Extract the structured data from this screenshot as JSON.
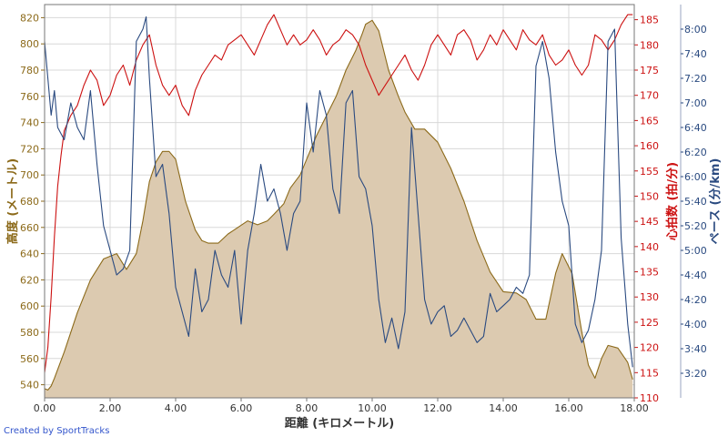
{
  "chart_data": {
    "type": "area",
    "xlabel": "距離 (キロメートル)",
    "credit": "Created by SportTracks",
    "grid": true,
    "x_axis": {
      "min": 0,
      "max": 18,
      "ticks": [
        0,
        2,
        4,
        6,
        8,
        10,
        12,
        14,
        16,
        18
      ],
      "tick_labels": [
        "0.00",
        "2.00",
        "4.00",
        "6.00",
        "8.00",
        "10.00",
        "12.00",
        "14.00",
        "16.00",
        "18.00"
      ]
    },
    "axes": {
      "elevation": {
        "label": "高度 (メートル)",
        "min": 530,
        "max": 830,
        "ticks": [
          540,
          560,
          580,
          600,
          620,
          640,
          660,
          680,
          700,
          720,
          740,
          760,
          780,
          800,
          820
        ],
        "tick_labels": [
          "540",
          "560",
          "580",
          "600",
          "620",
          "640",
          "660",
          "680",
          "700",
          "720",
          "740",
          "760",
          "780",
          "800",
          "820"
        ],
        "color": "#8c6a1a"
      },
      "heart_rate": {
        "label": "心拍数 (拍/分)",
        "min": 110,
        "max": 188,
        "ticks": [
          110,
          115,
          120,
          125,
          130,
          135,
          140,
          145,
          150,
          155,
          160,
          165,
          170,
          175,
          180,
          185
        ],
        "tick_labels": [
          "110",
          "115",
          "120",
          "125",
          "130",
          "135",
          "140",
          "145",
          "150",
          "155",
          "160",
          "165",
          "170",
          "175",
          "180",
          "185"
        ],
        "color": "#cc1111"
      },
      "pace": {
        "label": "ペース (分/km)",
        "min": 180,
        "max": 500,
        "ticks": [
          200,
          220,
          240,
          260,
          280,
          300,
          320,
          340,
          360,
          380,
          400,
          420,
          440,
          460,
          480
        ],
        "tick_labels": [
          "3:20",
          "3:40",
          "4:00",
          "4:20",
          "4:40",
          "5:00",
          "5:20",
          "5:40",
          "6:00",
          "6:20",
          "6:40",
          "7:00",
          "7:20",
          "7:40",
          "8:00"
        ],
        "color": "#2a4a80"
      }
    },
    "series": [
      {
        "axis": "elevation",
        "color": "#8c6a1a",
        "fill": "#dccab0",
        "x": [
          0,
          0.1,
          0.2,
          0.3,
          0.6,
          1.0,
          1.4,
          1.8,
          2.2,
          2.5,
          2.8,
          3.0,
          3.2,
          3.4,
          3.6,
          3.8,
          4.0,
          4.3,
          4.6,
          4.8,
          5.0,
          5.3,
          5.6,
          5.9,
          6.2,
          6.5,
          6.8,
          7.0,
          7.3,
          7.5,
          7.8,
          8.0,
          8.3,
          8.6,
          8.9,
          9.2,
          9.5,
          9.7,
          9.8,
          10.0,
          10.2,
          10.5,
          10.8,
          11.0,
          11.3,
          11.6,
          12.0,
          12.4,
          12.8,
          13.2,
          13.6,
          14.0,
          14.4,
          14.7,
          15.0,
          15.3,
          15.6,
          15.8,
          16.1,
          16.4,
          16.6,
          16.8,
          17.0,
          17.2,
          17.5,
          17.8,
          17.95
        ],
        "y": [
          537,
          536,
          539,
          545,
          565,
          595,
          620,
          636,
          640,
          628,
          640,
          665,
          695,
          710,
          718,
          718,
          712,
          680,
          658,
          650,
          648,
          648,
          655,
          660,
          665,
          662,
          665,
          670,
          678,
          690,
          700,
          712,
          730,
          745,
          760,
          780,
          795,
          808,
          815,
          818,
          810,
          780,
          760,
          748,
          735,
          735,
          725,
          705,
          680,
          650,
          626,
          611,
          610,
          605,
          590,
          590,
          625,
          640,
          625,
          580,
          555,
          545,
          560,
          570,
          568,
          557,
          544
        ]
      },
      {
        "axis": "heart_rate",
        "color": "#cc1111",
        "x": [
          0,
          0.1,
          0.2,
          0.3,
          0.4,
          0.5,
          0.6,
          0.8,
          1.0,
          1.2,
          1.4,
          1.6,
          1.8,
          2.0,
          2.2,
          2.4,
          2.6,
          2.8,
          3.0,
          3.2,
          3.4,
          3.6,
          3.8,
          4.0,
          4.2,
          4.4,
          4.6,
          4.8,
          5.0,
          5.2,
          5.4,
          5.6,
          5.8,
          6.0,
          6.2,
          6.4,
          6.6,
          6.8,
          7.0,
          7.2,
          7.4,
          7.6,
          7.8,
          8.0,
          8.2,
          8.4,
          8.6,
          8.8,
          9.0,
          9.2,
          9.4,
          9.6,
          9.8,
          10.0,
          10.2,
          10.4,
          10.6,
          10.8,
          11.0,
          11.2,
          11.4,
          11.6,
          11.8,
          12.0,
          12.2,
          12.4,
          12.6,
          12.8,
          13.0,
          13.2,
          13.4,
          13.6,
          13.8,
          14.0,
          14.2,
          14.4,
          14.6,
          14.8,
          15.0,
          15.2,
          15.4,
          15.6,
          15.8,
          16.0,
          16.2,
          16.4,
          16.6,
          16.8,
          17.0,
          17.2,
          17.4,
          17.6,
          17.8,
          17.95
        ],
        "y": [
          115,
          120,
          130,
          142,
          152,
          158,
          163,
          166,
          168,
          172,
          175,
          173,
          168,
          170,
          174,
          176,
          172,
          177,
          180,
          182,
          176,
          172,
          170,
          172,
          168,
          166,
          171,
          174,
          176,
          178,
          177,
          180,
          181,
          182,
          180,
          178,
          181,
          184,
          186,
          183,
          180,
          182,
          180,
          181,
          183,
          181,
          178,
          180,
          181,
          183,
          182,
          180,
          176,
          173,
          170,
          172,
          174,
          176,
          178,
          175,
          173,
          176,
          180,
          182,
          180,
          178,
          182,
          183,
          181,
          177,
          179,
          182,
          180,
          183,
          181,
          179,
          183,
          181,
          180,
          182,
          178,
          176,
          177,
          179,
          176,
          174,
          176,
          182,
          181,
          179,
          181,
          184,
          186,
          186
        ]
      },
      {
        "axis": "pace",
        "color": "#2a4a80",
        "x": [
          0,
          0.1,
          0.2,
          0.3,
          0.4,
          0.6,
          0.8,
          1.0,
          1.2,
          1.4,
          1.6,
          1.8,
          2.0,
          2.2,
          2.4,
          2.6,
          2.8,
          3.0,
          3.1,
          3.2,
          3.4,
          3.6,
          3.8,
          4.0,
          4.2,
          4.4,
          4.6,
          4.8,
          5.0,
          5.2,
          5.4,
          5.6,
          5.8,
          6.0,
          6.2,
          6.4,
          6.6,
          6.8,
          7.0,
          7.2,
          7.4,
          7.6,
          7.8,
          8.0,
          8.2,
          8.4,
          8.6,
          8.8,
          9.0,
          9.2,
          9.4,
          9.6,
          9.8,
          10.0,
          10.2,
          10.4,
          10.6,
          10.8,
          11.0,
          11.2,
          11.4,
          11.6,
          11.8,
          12.0,
          12.2,
          12.4,
          12.6,
          12.8,
          13.0,
          13.2,
          13.4,
          13.6,
          13.8,
          14.0,
          14.2,
          14.4,
          14.6,
          14.8,
          15.0,
          15.2,
          15.4,
          15.6,
          15.8,
          16.0,
          16.2,
          16.4,
          16.6,
          16.8,
          17.0,
          17.2,
          17.4,
          17.6,
          17.8,
          17.95
        ],
        "y": [
          470,
          440,
          410,
          430,
          400,
          390,
          420,
          400,
          390,
          430,
          370,
          320,
          300,
          280,
          285,
          300,
          470,
          480,
          490,
          440,
          360,
          370,
          330,
          270,
          250,
          230,
          285,
          250,
          260,
          300,
          280,
          270,
          300,
          240,
          300,
          330,
          370,
          340,
          350,
          330,
          300,
          330,
          340,
          420,
          380,
          430,
          410,
          350,
          330,
          420,
          430,
          360,
          350,
          320,
          260,
          225,
          245,
          220,
          250,
          400,
          330,
          260,
          240,
          250,
          255,
          230,
          235,
          245,
          235,
          225,
          230,
          265,
          250,
          255,
          260,
          270,
          265,
          280,
          450,
          470,
          440,
          380,
          340,
          320,
          240,
          225,
          235,
          260,
          300,
          470,
          480,
          310,
          240,
          205
        ]
      }
    ]
  }
}
